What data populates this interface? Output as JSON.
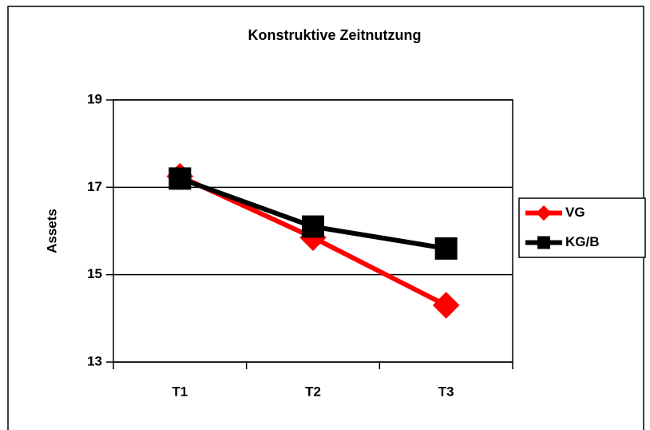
{
  "chart_data": {
    "type": "line",
    "title": "Konstruktive Zeitnutzung",
    "y_label": "Assets",
    "categories": [
      "T1",
      "T2",
      "T3"
    ],
    "series": [
      {
        "name": "VG",
        "color": "#ff0000",
        "marker": "diamond",
        "values": [
          17.25,
          15.85,
          14.3
        ]
      },
      {
        "name": "KG/B",
        "color": "#000000",
        "marker": "square",
        "values": [
          17.2,
          16.1,
          15.6
        ]
      }
    ],
    "ylim": [
      13,
      19
    ],
    "yticks": [
      13,
      15,
      17,
      19
    ],
    "grid": true,
    "legend": "right"
  }
}
